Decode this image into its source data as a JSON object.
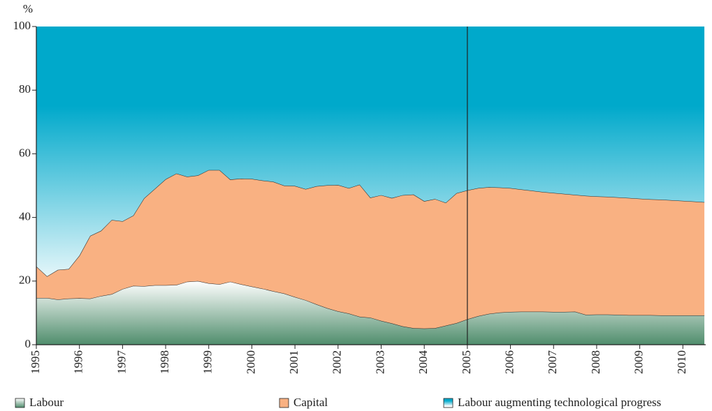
{
  "chart_data": {
    "type": "stacked_area",
    "y_label": "%",
    "x": [
      1995,
      1995.25,
      1995.5,
      1995.75,
      1996,
      1996.25,
      1996.5,
      1996.75,
      1997,
      1997.25,
      1997.5,
      1997.75,
      1998,
      1998.25,
      1998.5,
      1998.75,
      1999,
      1999.25,
      1999.5,
      1999.75,
      2000,
      2000.25,
      2000.5,
      2000.75,
      2001,
      2001.25,
      2001.5,
      2001.75,
      2002,
      2002.25,
      2002.5,
      2002.75,
      2003,
      2003.25,
      2003.5,
      2003.75,
      2004,
      2004.25,
      2004.5,
      2004.75,
      2005,
      2005.25,
      2005.5,
      2005.75,
      2006,
      2006.25,
      2006.5,
      2006.75,
      2007,
      2007.25,
      2007.5,
      2007.75,
      2008,
      2008.25,
      2008.5,
      2008.75,
      2009,
      2009.25,
      2009.5,
      2009.75,
      2010,
      2010.25,
      2010.5
    ],
    "series": [
      {
        "name": "Labour",
        "color": "#4f8d6c",
        "values": [
          14.7,
          14.7,
          14.2,
          14.5,
          14.6,
          14.5,
          15.3,
          15.9,
          17.5,
          18.5,
          18.4,
          18.7,
          18.7,
          18.8,
          19.8,
          20.0,
          19.3,
          19.0,
          19.8,
          19.0,
          18.3,
          17.6,
          16.8,
          16.1,
          15.0,
          14.0,
          12.7,
          11.5,
          10.5,
          9.8,
          8.8,
          8.5,
          7.5,
          6.7,
          5.8,
          5.2,
          5.1,
          5.2,
          6.0,
          6.8,
          8.0,
          9.0,
          9.7,
          10.1,
          10.3,
          10.4,
          10.4,
          10.4,
          10.3,
          10.3,
          10.4,
          9.4,
          9.5,
          9.5,
          9.4,
          9.3,
          9.3,
          9.3,
          9.2,
          9.2,
          9.2,
          9.2,
          9.2
        ]
      },
      {
        "name": "Capital",
        "color": "#f9b182",
        "values": [
          9.9,
          6.8,
          9.3,
          9.3,
          13.4,
          19.7,
          20.5,
          23.3,
          21.3,
          22.1,
          27.6,
          30.3,
          33.3,
          35.0,
          33.0,
          33.2,
          35.6,
          35.9,
          32.1,
          33.2,
          33.8,
          34.0,
          34.4,
          33.9,
          34.9,
          34.9,
          37.1,
          38.6,
          39.7,
          39.4,
          41.5,
          37.7,
          39.5,
          39.4,
          41.2,
          42.0,
          40.0,
          40.6,
          38.6,
          40.8,
          40.5,
          40.2,
          39.8,
          39.3,
          38.9,
          38.4,
          38.0,
          37.6,
          37.4,
          37.1,
          36.7,
          37.4,
          37.1,
          37.0,
          36.9,
          36.8,
          36.6,
          36.4,
          36.4,
          36.2,
          36.0,
          35.8,
          35.6
        ]
      },
      {
        "name": "Labour augmenting technological progress",
        "color": "#00a9cb",
        "values": [
          75.4,
          78.5,
          76.5,
          76.2,
          72.0,
          65.8,
          64.2,
          60.8,
          61.2,
          59.4,
          54.0,
          51.0,
          48.0,
          46.2,
          47.2,
          46.8,
          45.1,
          45.1,
          48.1,
          47.8,
          47.9,
          48.4,
          48.8,
          50.0,
          50.1,
          51.1,
          50.2,
          49.9,
          49.8,
          50.8,
          49.7,
          53.8,
          53.0,
          53.9,
          53.0,
          52.8,
          54.9,
          54.2,
          55.4,
          52.4,
          51.5,
          50.8,
          50.5,
          50.6,
          50.8,
          51.2,
          51.6,
          52.0,
          52.3,
          52.6,
          52.9,
          53.2,
          53.4,
          53.5,
          53.7,
          53.9,
          54.1,
          54.3,
          54.4,
          54.6,
          54.8,
          55.0,
          55.2
        ]
      }
    ],
    "xlim": [
      1995,
      2010.53
    ],
    "xticks": [
      1995,
      1996,
      1997,
      1998,
      1999,
      2000,
      2001,
      2002,
      2003,
      2004,
      2005,
      2006,
      2007,
      2008,
      2009,
      2010
    ],
    "ylim": [
      0,
      100
    ],
    "yticks": [
      0,
      20,
      40,
      60,
      80,
      100
    ],
    "vline": 2005,
    "legend": "bottom"
  }
}
